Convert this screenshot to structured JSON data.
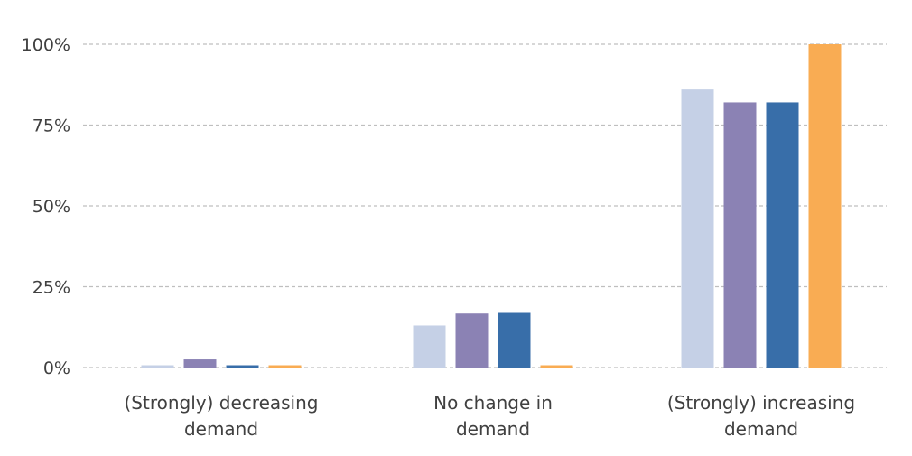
{
  "chart_data": {
    "type": "bar",
    "title": "",
    "xlabel": "",
    "ylabel": "",
    "ylim": [
      0,
      100
    ],
    "y_ticks": [
      {
        "value": 0,
        "label": "0%"
      },
      {
        "value": 25,
        "label": "25%"
      },
      {
        "value": 50,
        "label": "50%"
      },
      {
        "value": 75,
        "label": "75%"
      },
      {
        "value": 100,
        "label": "100%"
      }
    ],
    "grid": true,
    "legend": "none",
    "categories": [
      [
        "(Strongly) decreasing",
        "demand"
      ],
      [
        "No change in",
        "demand"
      ],
      [
        "(Strongly) increasing",
        "demand"
      ]
    ],
    "series": [
      {
        "color": "#c5d0e6",
        "values": [
          0.3,
          13,
          86
        ]
      },
      {
        "color": "#8b82b4",
        "values": [
          2.5,
          16.7,
          82
        ]
      },
      {
        "color": "#386ea9",
        "values": [
          0.5,
          16.9,
          82
        ]
      },
      {
        "color": "#f9ac53",
        "values": [
          0.5,
          0.5,
          100
        ]
      }
    ]
  }
}
